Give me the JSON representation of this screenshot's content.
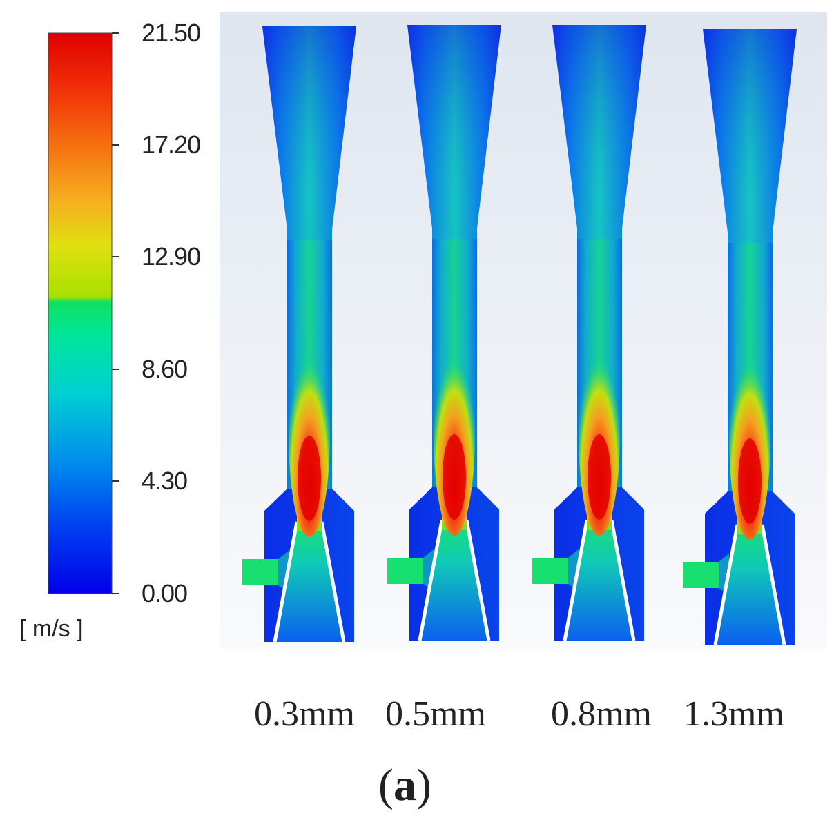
{
  "legend": {
    "ticks": [
      "21.50",
      "17.20",
      "12.90",
      "8.60",
      "4.30",
      "0.00"
    ],
    "unit": "[ m/s ]",
    "colors": [
      "#0000e8",
      "#0066f0",
      "#00b0e8",
      "#00e6a8",
      "#10e060",
      "#a8e000",
      "#f0d020",
      "#f59020",
      "#f05010",
      "#e00000"
    ]
  },
  "cases": [
    {
      "label": "0.3mm"
    },
    {
      "label": "0.5mm"
    },
    {
      "label": "0.8mm"
    },
    {
      "label": "1.3mm"
    }
  ],
  "panel": {
    "label": "a"
  },
  "colors": {
    "background_gradient_top": "#dfe6f0",
    "background_gradient_bottom": "#f8f9fb",
    "low": "#0a2ee6",
    "mid": "#18e070",
    "high": "#e40000"
  }
}
